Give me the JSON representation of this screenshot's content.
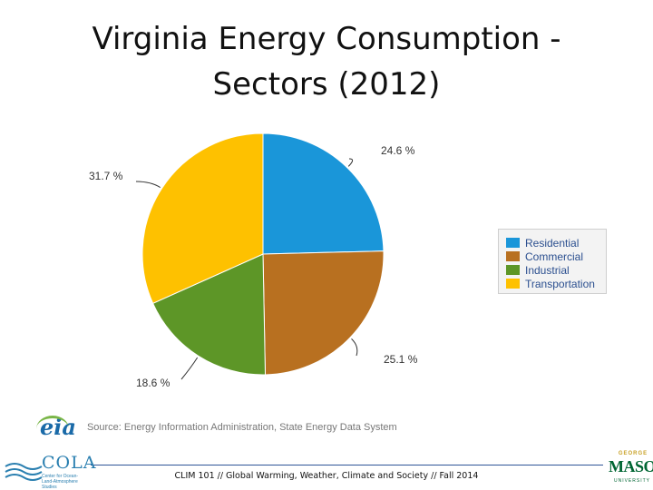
{
  "title": {
    "line1": "Virginia Energy Consumption -",
    "line2": "Sectors (2012)"
  },
  "chart_data": {
    "type": "pie",
    "title": "Virginia Energy Consumption - Sectors (2012)",
    "categories": [
      "Residential",
      "Commercial",
      "Industrial",
      "Transportation"
    ],
    "values": [
      24.6,
      25.1,
      18.6,
      31.7
    ],
    "labels": [
      "24.6 %",
      "25.1 %",
      "18.6 %",
      "31.7 %"
    ],
    "colors": [
      "#1a96d9",
      "#b87020",
      "#5d9627",
      "#fec100"
    ],
    "legend_position": "right"
  },
  "source": {
    "logo_text": "eia",
    "text": "Source: Energy Information Administration, State Energy Data System"
  },
  "footer": {
    "text": "CLIM 101 // Global Warming, Weather, Climate and Society // Fall 2014",
    "cola_logo": "COLA",
    "cola_subtitle": "Center for Ocean-Land-Atmosphere Studies",
    "gmu_top": "GEORGE",
    "gmu_main": "MASON",
    "gmu_sub": "UNIVERSITY"
  }
}
